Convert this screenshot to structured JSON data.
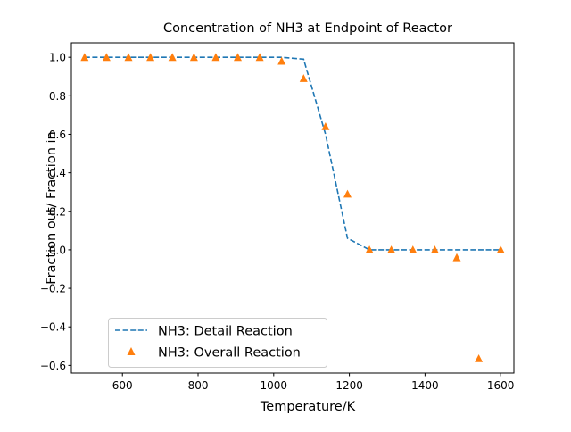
{
  "chart_data": {
    "type": "line",
    "title": "Concentration of NH3 at Endpoint of Reactor",
    "xlabel": "Temperature/K",
    "ylabel": "Fraction out/ Fraction in",
    "xlim": [
      465,
      1635
    ],
    "ylim": [
      -0.64,
      1.075
    ],
    "xticks": [
      600,
      800,
      1000,
      1200,
      1400,
      1600
    ],
    "xtick_labels": [
      "600",
      "800",
      "1000",
      "1200",
      "1400",
      "1600"
    ],
    "yticks": [
      -0.6,
      -0.4,
      -0.2,
      0.0,
      0.2,
      0.4,
      0.6,
      0.8,
      1.0
    ],
    "ytick_labels": [
      "−0.6",
      "−0.4",
      "−0.2",
      "0.0",
      "0.2",
      "0.4",
      "0.6",
      "0.8",
      "1.0"
    ],
    "grid": false,
    "legend_position": "lower-left",
    "series": [
      {
        "name": "NH3: Detail Reaction",
        "style": "dashed-line",
        "color": "#1f77b4",
        "x": [
          500,
          558,
          616,
          674,
          732,
          789,
          847,
          905,
          963,
          1021,
          1079,
          1137,
          1195,
          1253,
          1311,
          1368,
          1426,
          1484,
          1542,
          1600
        ],
        "y": [
          1.0,
          1.0,
          1.0,
          1.0,
          1.0,
          1.0,
          1.0,
          1.0,
          1.0,
          1.0,
          0.99,
          0.6,
          0.06,
          0.0,
          0.0,
          0.0,
          0.0,
          0.0,
          0.0,
          0.0
        ]
      },
      {
        "name": "NH3: Overall Reaction",
        "style": "triangle-markers",
        "color": "#ff7f0e",
        "x": [
          500,
          558,
          616,
          674,
          732,
          789,
          847,
          905,
          963,
          1021,
          1079,
          1137,
          1195,
          1253,
          1311,
          1368,
          1426,
          1484,
          1542,
          1600
        ],
        "y": [
          1.0,
          1.0,
          1.0,
          1.0,
          1.0,
          1.0,
          1.0,
          1.0,
          1.0,
          0.98,
          0.89,
          0.64,
          0.29,
          0.0,
          0.0,
          0.0,
          0.0,
          -0.04,
          -0.565,
          0.0
        ]
      }
    ]
  }
}
